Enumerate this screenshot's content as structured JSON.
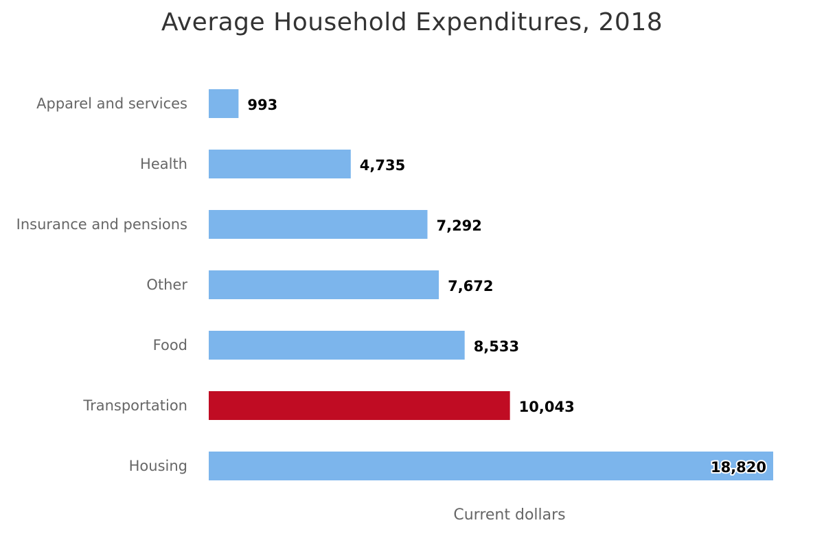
{
  "chart_data": {
    "type": "bar",
    "orientation": "horizontal",
    "title": "Average Household Expenditures, 2018",
    "xlabel": "Current dollars",
    "ylabel": "",
    "categories": [
      "Apparel and services",
      "Health",
      "Insurance and pensions",
      "Other",
      "Food",
      "Transportation",
      "Housing"
    ],
    "values": [
      993,
      4735,
      7292,
      7672,
      8533,
      10043,
      18820
    ],
    "value_labels": [
      "993",
      "4,735",
      "7,292",
      "7,672",
      "8,533",
      "10,043",
      "18,820"
    ],
    "xlim": [
      0,
      18820
    ],
    "grid": false,
    "legend": "none",
    "colors": {
      "default_bar": "#7cb5ec",
      "highlight_bar": "#c00c23",
      "highlight_category": "Transportation"
    }
  }
}
